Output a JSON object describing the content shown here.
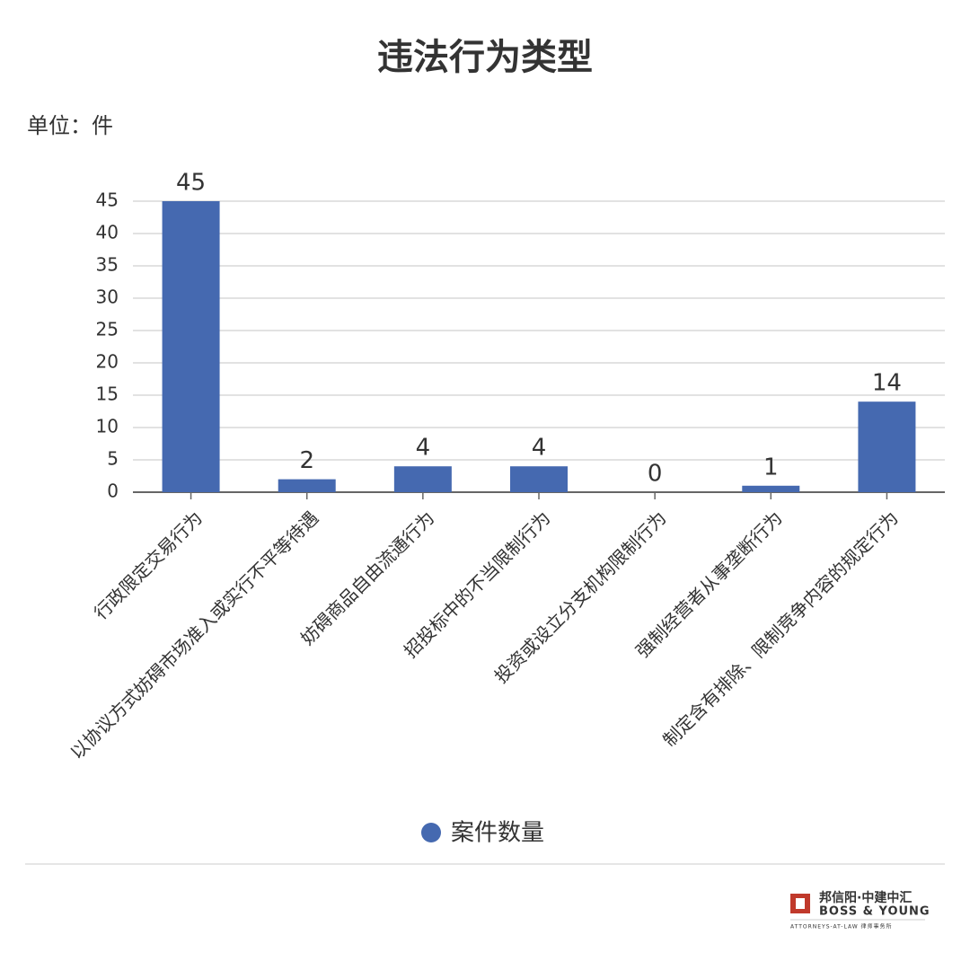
{
  "chart_data": {
    "type": "bar",
    "title": "违法行为类型",
    "unit_label": "单位：件",
    "categories": [
      "行政限定交易行为",
      "以协议方式妨碍市场准入或实行不平等待遇",
      "妨碍商品自由流通行为",
      "招投标中的不当限制行为",
      "投资或设立分支机构限制行为",
      "强制经营者从事垄断行为",
      "制定含有排除、限制竞争内容的规定行为"
    ],
    "series": [
      {
        "name": "案件数量",
        "color": "#4569b0",
        "values": [
          45,
          2,
          4,
          4,
          0,
          1,
          14
        ]
      }
    ],
    "ylim": [
      0,
      45
    ],
    "yticks": [
      0,
      5,
      10,
      15,
      20,
      25,
      30,
      35,
      40,
      45
    ],
    "grid": true,
    "legend": "bottom"
  },
  "footer": {
    "logo_cn": "邦信阳·中建中汇",
    "logo_en": "BOSS & YOUNG",
    "logo_sub": "ATTORNEYS-AT-LAW 律师事务所"
  }
}
